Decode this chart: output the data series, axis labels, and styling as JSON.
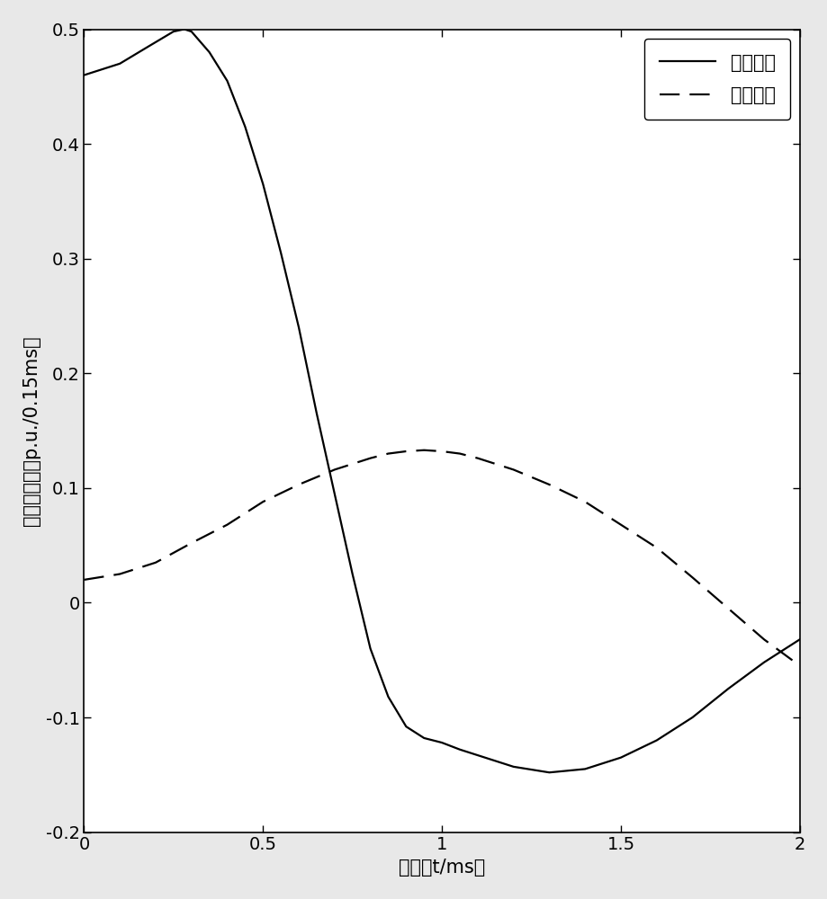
{
  "title": "",
  "xlabel": "时间（t/ms）",
  "ylabel": "电压变化率（p.u./0.15ms）",
  "xlim": [
    0,
    2
  ],
  "ylim": [
    -0.2,
    0.5
  ],
  "xticks": [
    0,
    0.5,
    1,
    1.5,
    2
  ],
  "xtick_labels": [
    "0",
    "0.5",
    "1",
    "1.5",
    "2"
  ],
  "yticks": [
    -0.2,
    -0.1,
    0,
    0.1,
    0.2,
    0.3,
    0.4,
    0.5
  ],
  "ytick_labels": [
    "-0.2",
    "-0. ",
    "0",
    "0.1",
    "0.2",
    "0.3",
    "0.4",
    "0.5"
  ],
  "line1_label": "区内故障",
  "line2_label": "区外故障",
  "line1_color": "#000000",
  "line2_color": "#000000",
  "line1_x": [
    0.0,
    0.1,
    0.18,
    0.25,
    0.28,
    0.3,
    0.35,
    0.4,
    0.45,
    0.5,
    0.55,
    0.6,
    0.65,
    0.7,
    0.75,
    0.8,
    0.85,
    0.9,
    0.95,
    1.0,
    1.05,
    1.1,
    1.2,
    1.3,
    1.4,
    1.5,
    1.6,
    1.7,
    1.8,
    1.9,
    2.0
  ],
  "line1_y": [
    0.46,
    0.47,
    0.485,
    0.498,
    0.5,
    0.498,
    0.48,
    0.455,
    0.415,
    0.365,
    0.305,
    0.24,
    0.165,
    0.095,
    0.025,
    -0.04,
    -0.082,
    -0.108,
    -0.118,
    -0.122,
    -0.128,
    -0.133,
    -0.143,
    -0.148,
    -0.145,
    -0.135,
    -0.12,
    -0.1,
    -0.075,
    -0.052,
    -0.032
  ],
  "line2_x": [
    0.0,
    0.1,
    0.2,
    0.3,
    0.4,
    0.5,
    0.6,
    0.7,
    0.75,
    0.8,
    0.85,
    0.9,
    0.95,
    1.0,
    1.05,
    1.1,
    1.2,
    1.3,
    1.4,
    1.5,
    1.6,
    1.7,
    1.8,
    1.9,
    2.0
  ],
  "line2_y": [
    0.02,
    0.025,
    0.035,
    0.052,
    0.068,
    0.088,
    0.103,
    0.116,
    0.121,
    0.126,
    0.13,
    0.132,
    0.133,
    0.132,
    0.13,
    0.126,
    0.116,
    0.103,
    0.088,
    0.068,
    0.048,
    0.022,
    -0.005,
    -0.032,
    -0.055
  ],
  "linewidth": 1.6,
  "fontsize_label": 15,
  "fontsize_tick": 14,
  "fontsize_legend": 15,
  "legend_loc": "upper right",
  "plot_bg": "#ffffff",
  "fig_bg": "#e8e8e8"
}
